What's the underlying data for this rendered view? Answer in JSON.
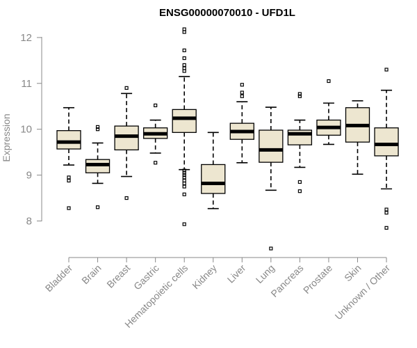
{
  "chart_data": {
    "type": "box",
    "title": "ENSG00000070010 - UFD1L",
    "xlabel": "",
    "ylabel": "Expression",
    "ylim": [
      7.3,
      12.3
    ],
    "yticks": [
      8,
      9,
      10,
      11,
      12
    ],
    "grid": false,
    "colors": {
      "box_fill": "#EDE6D0",
      "box_stroke": "#000000",
      "axis": "#888888"
    },
    "categories": [
      "Bladder",
      "Brain",
      "Breast",
      "Gastric",
      "Hematopoietic cells",
      "Kidney",
      "Liver",
      "Lung",
      "Pancreas",
      "Prostate",
      "Skin",
      "Unknown / Other"
    ],
    "boxes": [
      {
        "category": "Bladder",
        "whisker_low": 9.22,
        "q1": 9.57,
        "median": 9.72,
        "q3": 9.97,
        "whisker_high": 10.47,
        "outliers": [
          8.95,
          8.88,
          8.28
        ]
      },
      {
        "category": "Brain",
        "whisker_low": 8.82,
        "q1": 9.05,
        "median": 9.23,
        "q3": 9.34,
        "whisker_high": 9.7,
        "outliers": [
          10.05,
          10.0,
          8.3
        ]
      },
      {
        "category": "Breast",
        "whisker_low": 8.97,
        "q1": 9.55,
        "median": 9.85,
        "q3": 10.07,
        "whisker_high": 10.78,
        "outliers": [
          10.9,
          8.5
        ]
      },
      {
        "category": "Gastric",
        "whisker_low": 9.48,
        "q1": 9.8,
        "median": 9.9,
        "q3": 10.03,
        "whisker_high": 10.2,
        "outliers": [
          10.52,
          9.27
        ]
      },
      {
        "category": "Hematopoietic cells",
        "whisker_low": 9.12,
        "q1": 9.93,
        "median": 10.24,
        "q3": 10.43,
        "whisker_high": 11.15,
        "outliers": [
          12.18,
          12.12,
          11.72,
          11.55,
          11.4,
          11.33,
          11.27,
          9.1,
          9.05,
          9.0,
          8.95,
          8.88,
          8.82,
          8.75,
          8.58,
          7.93
        ]
      },
      {
        "category": "Kidney",
        "whisker_low": 8.27,
        "q1": 8.6,
        "median": 8.82,
        "q3": 9.23,
        "whisker_high": 9.93,
        "outliers": []
      },
      {
        "category": "Liver",
        "whisker_low": 9.27,
        "q1": 9.78,
        "median": 9.95,
        "q3": 10.13,
        "whisker_high": 10.6,
        "outliers": [
          10.97,
          10.8,
          10.72
        ]
      },
      {
        "category": "Lung",
        "whisker_low": 8.67,
        "q1": 9.28,
        "median": 9.55,
        "q3": 9.98,
        "whisker_high": 10.48,
        "outliers": [
          7.4
        ]
      },
      {
        "category": "Pancreas",
        "whisker_low": 9.17,
        "q1": 9.66,
        "median": 9.9,
        "q3": 9.98,
        "whisker_high": 10.2,
        "outliers": [
          10.77,
          10.72,
          8.85,
          8.65
        ]
      },
      {
        "category": "Prostate",
        "whisker_low": 9.67,
        "q1": 9.87,
        "median": 10.04,
        "q3": 10.2,
        "whisker_high": 10.57,
        "outliers": [
          11.05
        ]
      },
      {
        "category": "Skin",
        "whisker_low": 9.02,
        "q1": 9.72,
        "median": 10.08,
        "q3": 10.47,
        "whisker_high": 10.62,
        "outliers": []
      },
      {
        "category": "Unknown / Other",
        "whisker_low": 8.7,
        "q1": 9.42,
        "median": 9.67,
        "q3": 10.03,
        "whisker_high": 10.85,
        "outliers": [
          11.3,
          8.25,
          8.18,
          7.85
        ]
      }
    ]
  }
}
